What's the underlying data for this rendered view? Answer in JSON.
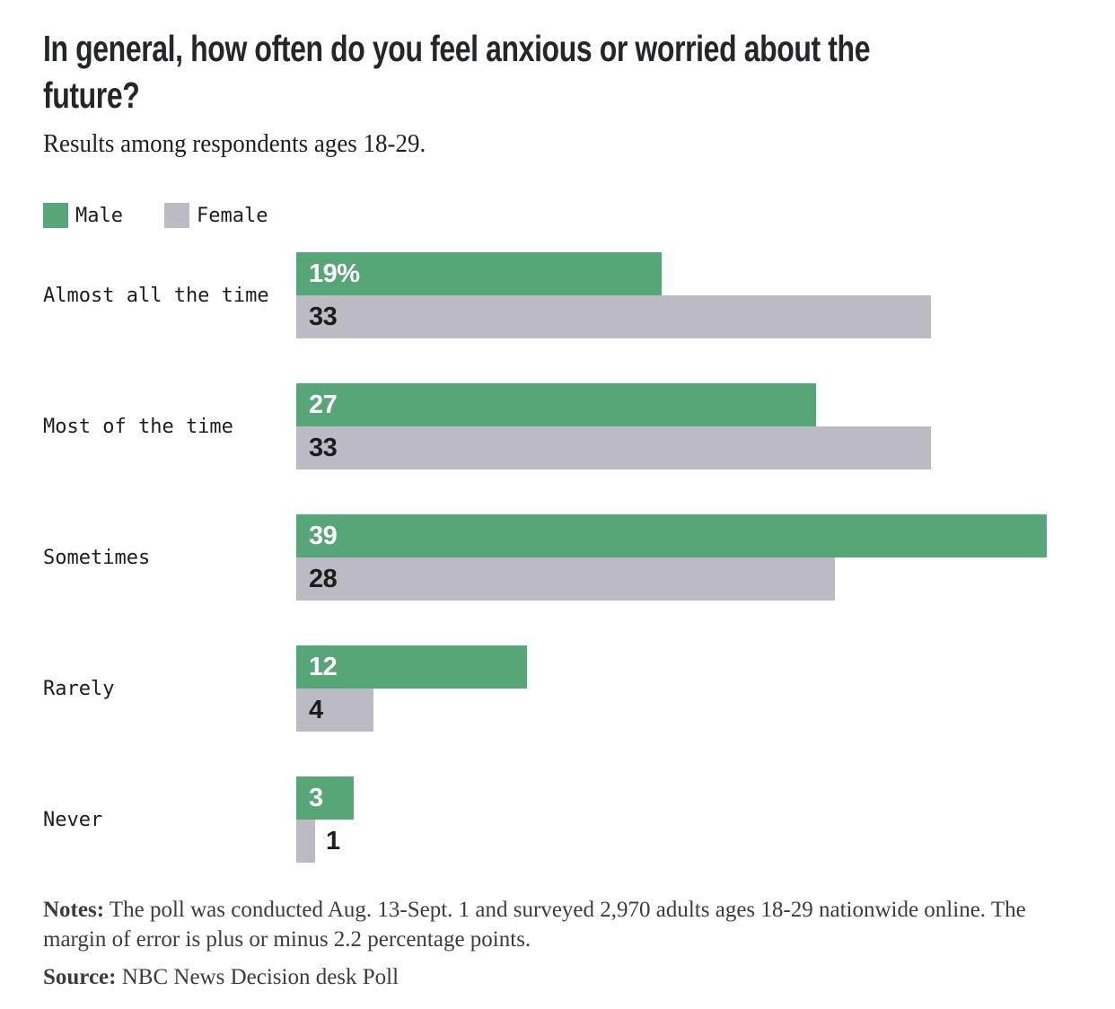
{
  "header": {
    "title_line1": "In general, how often do you feel anxious or worried about the",
    "title_line2": "future?",
    "subtitle": "Results among respondents ages 18-29."
  },
  "chart_data": {
    "type": "bar",
    "orientation": "horizontal",
    "title": "In general, how often do you feel anxious or worried about the future?",
    "subtitle": "Results among respondents ages 18-29.",
    "categories": [
      "Almost all the time",
      "Most of the time",
      "Sometimes",
      "Rarely",
      "Never"
    ],
    "series": [
      {
        "name": "Male",
        "color": "#57a678",
        "values": [
          19,
          27,
          39,
          12,
          3
        ],
        "labels": [
          "19%",
          "27",
          "39",
          "12",
          "3"
        ]
      },
      {
        "name": "Female",
        "color": "#bcbbc4",
        "values": [
          33,
          33,
          28,
          4,
          1
        ],
        "labels": [
          "33",
          "33",
          "28",
          "4",
          "1"
        ]
      }
    ],
    "value_unit": "percent",
    "xlim": [
      0,
      39
    ],
    "grid": false,
    "legend_position": "top"
  },
  "footer": {
    "notes_label": "Notes:",
    "notes_text": "The poll was conducted Aug. 13-Sept. 1 and surveyed 2,970 adults ages 18-29 nationwide online. The margin of error is plus or minus 2.2 percentage points.",
    "source_label": "Source:",
    "source_text": "NBC News Decision desk Poll"
  }
}
